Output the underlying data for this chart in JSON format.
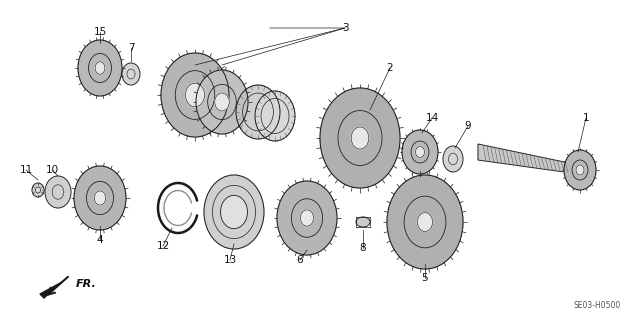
{
  "bg_color": "#ffffff",
  "diagram_code": "SE03-H0500",
  "fr_label": "FR.",
  "line_color": "#1a1a1a",
  "text_color": "#111111",
  "light_gray": "#d0d0d0",
  "mid_gray": "#a0a0a0",
  "dark_gray": "#606060"
}
